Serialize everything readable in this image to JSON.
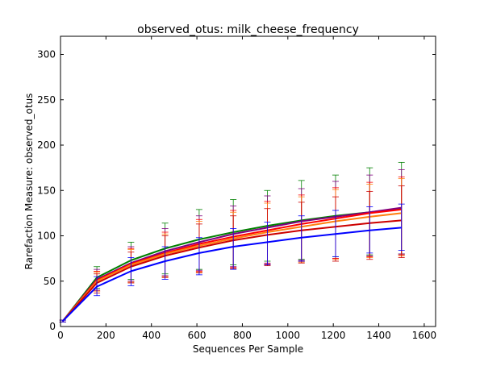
{
  "chart_data": {
    "type": "line",
    "title": "observed_otus: milk_cheese_frequency",
    "xlabel": "Sequences Per Sample",
    "ylabel": "Rarefaction Measure: observed_otus",
    "xlim": [
      0,
      1650
    ],
    "ylim": [
      0,
      320
    ],
    "xticks": [
      0,
      200,
      400,
      600,
      800,
      1000,
      1200,
      1400,
      1600
    ],
    "yticks": [
      0,
      50,
      100,
      150,
      200,
      250,
      300
    ],
    "grid": false,
    "legend": "none",
    "x": [
      10,
      160,
      310,
      460,
      610,
      760,
      910,
      1060,
      1210,
      1360,
      1500
    ],
    "series": [
      {
        "color": "#008000",
        "values": [
          6,
          54,
          73,
          86,
          96,
          104,
          111,
          117,
          122,
          126,
          130
        ],
        "err_low": [
          5,
          42,
          52,
          58,
          63,
          68,
          72,
          74,
          77,
          79,
          80
        ],
        "err_high": [
          7,
          66,
          93,
          114,
          129,
          140,
          150,
          161,
          167,
          175,
          181
        ]
      },
      {
        "color": "#800080",
        "values": [
          6,
          52,
          70,
          83,
          93,
          102,
          109,
          116,
          121,
          126,
          131
        ],
        "err_low": [
          5,
          40,
          50,
          56,
          62,
          66,
          70,
          73,
          75,
          78,
          80
        ],
        "err_high": [
          7,
          63,
          88,
          108,
          122,
          133,
          144,
          152,
          160,
          167,
          173
        ]
      },
      {
        "color": "#ff0000",
        "values": [
          6,
          51,
          69,
          81,
          91,
          99,
          106,
          113,
          119,
          125,
          129
        ],
        "err_low": [
          5,
          39,
          49,
          55,
          61,
          65,
          69,
          72,
          75,
          77,
          79
        ],
        "err_high": [
          7,
          61,
          86,
          104,
          118,
          128,
          138,
          145,
          153,
          159,
          165
        ]
      },
      {
        "color": "#ff7f0e",
        "values": [
          6,
          50,
          68,
          80,
          89,
          97,
          104,
          110,
          116,
          121,
          125
        ],
        "err_low": [
          5,
          39,
          49,
          55,
          60,
          64,
          68,
          71,
          74,
          76,
          78
        ],
        "err_high": [
          7,
          60,
          85,
          102,
          116,
          126,
          136,
          143,
          151,
          157,
          163
        ]
      },
      {
        "color": "#cc0000",
        "values": [
          6,
          48,
          66,
          78,
          87,
          95,
          101,
          106,
          110,
          114,
          117
        ],
        "err_low": [
          5,
          37,
          48,
          54,
          59,
          64,
          67,
          70,
          72,
          74,
          76
        ],
        "err_high": [
          7,
          58,
          82,
          100,
          113,
          122,
          130,
          137,
          143,
          149,
          155
        ]
      },
      {
        "color": "#0000ff",
        "values": [
          6,
          44,
          61,
          72,
          81,
          88,
          93,
          98,
          102,
          106,
          109
        ],
        "err_low": [
          5,
          34,
          45,
          52,
          57,
          63,
          68,
          72,
          77,
          81,
          84
        ],
        "err_high": [
          7,
          55,
          76,
          88,
          98,
          108,
          115,
          122,
          128,
          132,
          135
        ]
      }
    ]
  }
}
